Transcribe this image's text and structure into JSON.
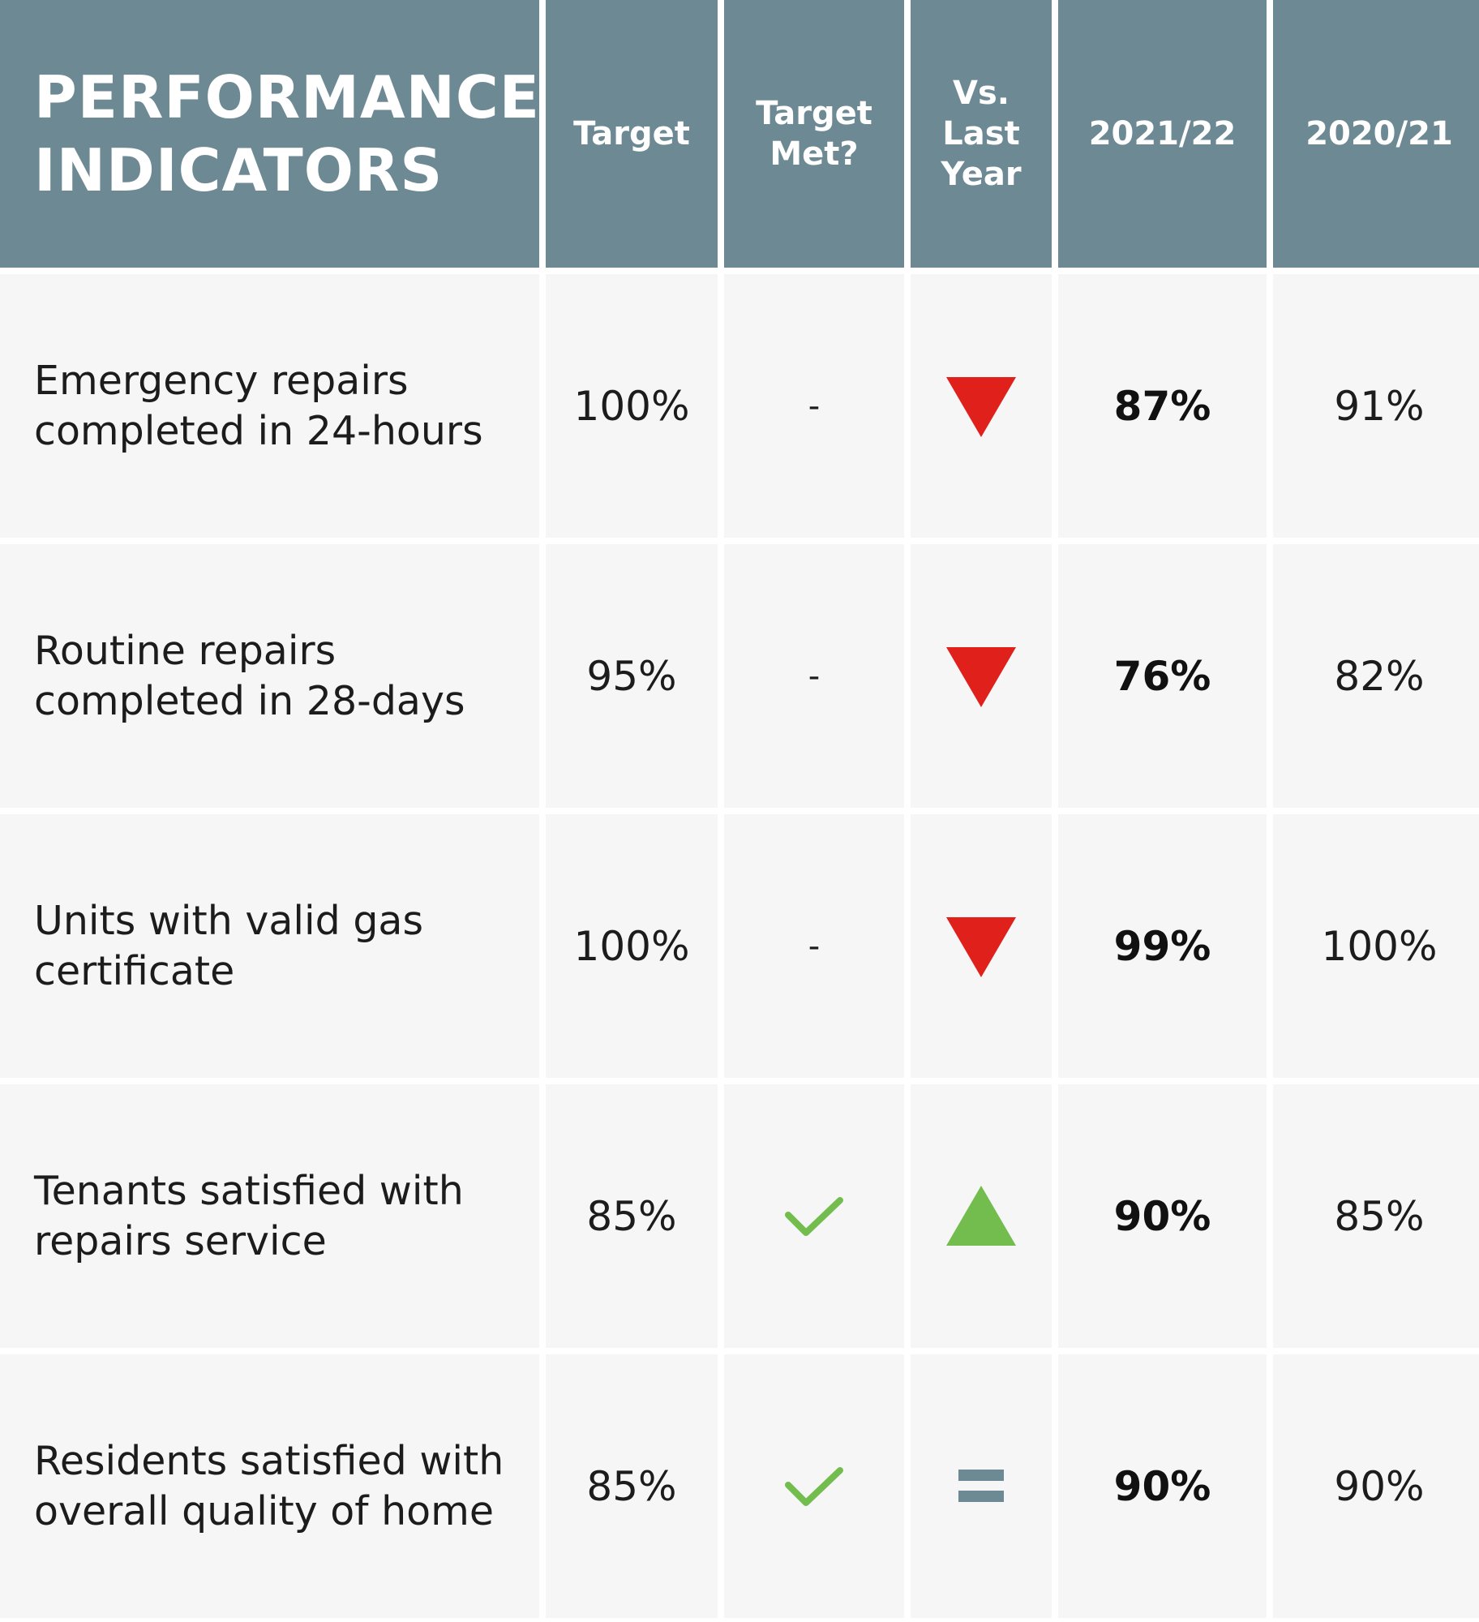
{
  "chart_data": {
    "type": "table",
    "columns": [
      "PERFORMANCE INDICATORS",
      "Target",
      "Target Met?",
      "Vs. Last Year",
      "2021/22",
      "2020/21"
    ],
    "header": {
      "title_lines": [
        "PERFORMANCE",
        "INDICATORS"
      ],
      "target": "Target",
      "target_met_lines": [
        "Target",
        "Met?"
      ],
      "vs_last_year_lines": [
        "Vs.",
        "Last",
        "Year"
      ],
      "year_current": "2021/22",
      "year_previous": "2020/21"
    },
    "rows": [
      {
        "label_lines": [
          "Emergency repairs",
          "completed in 24-hours"
        ],
        "target": "100%",
        "target_met": "-",
        "target_met_icon": "none",
        "trend": "down",
        "current": "87%",
        "previous": "91%"
      },
      {
        "label_lines": [
          "Routine repairs",
          "completed in 28-days"
        ],
        "target": "95%",
        "target_met": "-",
        "target_met_icon": "none",
        "trend": "down",
        "current": "76%",
        "previous": "82%"
      },
      {
        "label_lines": [
          "Units with valid gas",
          "certificate"
        ],
        "target": "100%",
        "target_met": "-",
        "target_met_icon": "none",
        "trend": "down",
        "current": "99%",
        "previous": "100%"
      },
      {
        "label_lines": [
          "Tenants satisfied with",
          "repairs service"
        ],
        "target": "85%",
        "target_met": "",
        "target_met_icon": "check-icon",
        "trend": "up",
        "current": "90%",
        "previous": "85%"
      },
      {
        "label_lines": [
          "Residents satisfied with",
          "overall quality of home"
        ],
        "target": "85%",
        "target_met": "",
        "target_met_icon": "check-icon",
        "trend": "equal",
        "current": "90%",
        "previous": "90%"
      }
    ]
  },
  "colors": {
    "header_bg": "#6d8a94",
    "cell_bg": "#f6f6f6",
    "trend_down": "#e0201b",
    "trend_up": "#72bd4e",
    "trend_equal": "#6d8a94",
    "check": "#72bd4e"
  }
}
